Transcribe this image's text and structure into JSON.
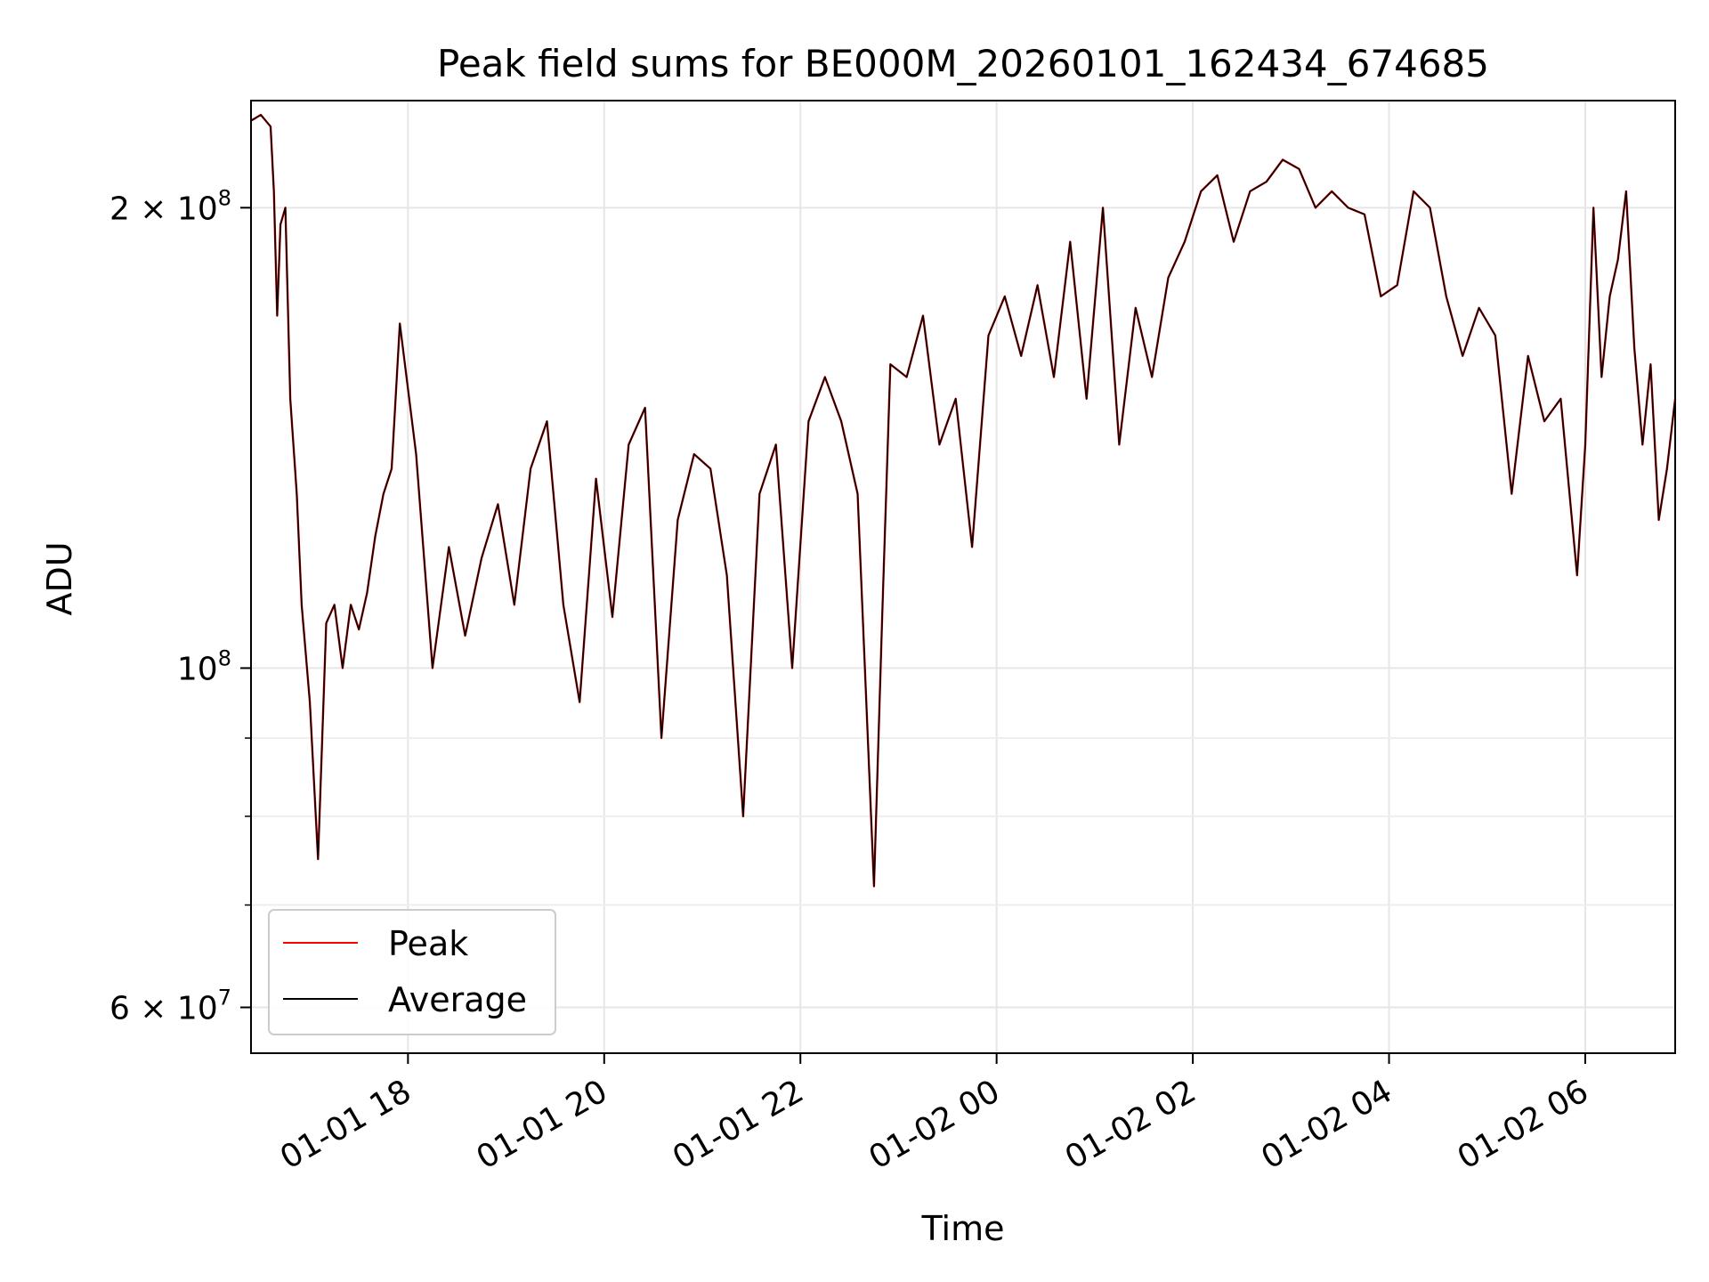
{
  "chart_data": {
    "type": "line",
    "title": "Peak field sums for BE000M_20260101_162434_674685",
    "xlabel": "Time",
    "ylabel": "ADU",
    "y_scale": "log",
    "ylim": [
      56000000,
      235000000
    ],
    "xlim": [
      "2026-01-01 16:24",
      "2026-01-02 06:55"
    ],
    "grid": true,
    "legend_position": "lower-left",
    "x_ticks": [
      {
        "at": "2026-01-01 18:00",
        "label": "01-01 18"
      },
      {
        "at": "2026-01-01 20:00",
        "label": "01-01 20"
      },
      {
        "at": "2026-01-01 22:00",
        "label": "01-01 22"
      },
      {
        "at": "2026-01-02 00:00",
        "label": "01-02 00"
      },
      {
        "at": "2026-01-02 02:00",
        "label": "01-02 02"
      },
      {
        "at": "2026-01-02 04:00",
        "label": "01-02 04"
      },
      {
        "at": "2026-01-02 06:00",
        "label": "01-02 06"
      }
    ],
    "y_ticks": [
      {
        "value": 200000000,
        "label_base": "2 × 10",
        "label_exp": "8"
      },
      {
        "value": 100000000,
        "label_base": "10",
        "label_exp": "8"
      },
      {
        "value": 60000000,
        "label_base": "6 × 10",
        "label_exp": "7"
      }
    ],
    "y_minor_ticks": [
      70000000,
      80000000,
      90000000
    ],
    "series": [
      {
        "name": "Peak",
        "color": "#ff0000",
        "x": [
          "2026-01-01 16:24",
          "2026-01-01 16:30",
          "2026-01-01 16:36",
          "2026-01-01 16:38",
          "2026-01-01 16:40",
          "2026-01-01 16:42",
          "2026-01-01 16:45",
          "2026-01-01 16:48",
          "2026-01-01 16:52",
          "2026-01-01 16:55",
          "2026-01-01 17:00",
          "2026-01-01 17:05",
          "2026-01-01 17:10",
          "2026-01-01 17:15",
          "2026-01-01 17:20",
          "2026-01-01 17:25",
          "2026-01-01 17:30",
          "2026-01-01 17:35",
          "2026-01-01 17:40",
          "2026-01-01 17:45",
          "2026-01-01 17:50",
          "2026-01-01 17:55",
          "2026-01-01 18:05",
          "2026-01-01 18:15",
          "2026-01-01 18:25",
          "2026-01-01 18:35",
          "2026-01-01 18:45",
          "2026-01-01 18:55",
          "2026-01-01 19:05",
          "2026-01-01 19:15",
          "2026-01-01 19:25",
          "2026-01-01 19:35",
          "2026-01-01 19:45",
          "2026-01-01 19:55",
          "2026-01-01 20:05",
          "2026-01-01 20:15",
          "2026-01-01 20:25",
          "2026-01-01 20:35",
          "2026-01-01 20:45",
          "2026-01-01 20:55",
          "2026-01-01 21:05",
          "2026-01-01 21:15",
          "2026-01-01 21:25",
          "2026-01-01 21:35",
          "2026-01-01 21:45",
          "2026-01-01 21:55",
          "2026-01-01 22:05",
          "2026-01-01 22:15",
          "2026-01-01 22:25",
          "2026-01-01 22:35",
          "2026-01-01 22:45",
          "2026-01-01 22:50",
          "2026-01-01 22:55",
          "2026-01-01 23:05",
          "2026-01-01 23:15",
          "2026-01-01 23:25",
          "2026-01-01 23:35",
          "2026-01-01 23:45",
          "2026-01-01 23:55",
          "2026-01-02 00:05",
          "2026-01-02 00:15",
          "2026-01-02 00:25",
          "2026-01-02 00:35",
          "2026-01-02 00:45",
          "2026-01-02 00:55",
          "2026-01-02 01:05",
          "2026-01-02 01:15",
          "2026-01-02 01:25",
          "2026-01-02 01:35",
          "2026-01-02 01:45",
          "2026-01-02 01:55",
          "2026-01-02 02:05",
          "2026-01-02 02:15",
          "2026-01-02 02:25",
          "2026-01-02 02:35",
          "2026-01-02 02:45",
          "2026-01-02 02:55",
          "2026-01-02 03:05",
          "2026-01-02 03:15",
          "2026-01-02 03:25",
          "2026-01-02 03:35",
          "2026-01-02 03:45",
          "2026-01-02 03:55",
          "2026-01-02 04:05",
          "2026-01-02 04:15",
          "2026-01-02 04:25",
          "2026-01-02 04:35",
          "2026-01-02 04:45",
          "2026-01-02 04:55",
          "2026-01-02 05:05",
          "2026-01-02 05:15",
          "2026-01-02 05:25",
          "2026-01-02 05:35",
          "2026-01-02 05:45",
          "2026-01-02 05:55",
          "2026-01-02 06:00",
          "2026-01-02 06:05",
          "2026-01-02 06:10",
          "2026-01-02 06:15",
          "2026-01-02 06:20",
          "2026-01-02 06:25",
          "2026-01-02 06:30",
          "2026-01-02 06:35",
          "2026-01-02 06:40",
          "2026-01-02 06:45",
          "2026-01-02 06:50",
          "2026-01-02 06:55"
        ],
        "values": [
          228000000,
          230000000,
          226000000,
          205000000,
          170000000,
          195000000,
          200000000,
          150000000,
          130000000,
          110000000,
          95000000,
          75000000,
          107000000,
          110000000,
          100000000,
          110000000,
          106000000,
          112000000,
          122000000,
          130000000,
          135000000,
          168000000,
          138000000,
          100000000,
          120000000,
          105000000,
          118000000,
          128000000,
          110000000,
          135000000,
          145000000,
          110000000,
          95000000,
          133000000,
          108000000,
          140000000,
          148000000,
          90000000,
          125000000,
          138000000,
          135000000,
          115000000,
          80000000,
          130000000,
          140000000,
          100000000,
          145000000,
          155000000,
          145000000,
          130000000,
          72000000,
          108000000,
          158000000,
          155000000,
          170000000,
          140000000,
          150000000,
          120000000,
          165000000,
          175000000,
          160000000,
          178000000,
          155000000,
          190000000,
          150000000,
          200000000,
          140000000,
          172000000,
          155000000,
          180000000,
          190000000,
          205000000,
          210000000,
          190000000,
          205000000,
          208000000,
          215000000,
          212000000,
          200000000,
          205000000,
          200000000,
          198000000,
          175000000,
          178000000,
          205000000,
          200000000,
          175000000,
          160000000,
          172000000,
          165000000,
          130000000,
          160000000,
          145000000,
          150000000,
          115000000,
          140000000,
          200000000,
          155000000,
          175000000,
          185000000,
          205000000,
          162000000,
          140000000,
          158000000,
          125000000,
          135000000,
          150000000
        ],
        "values_note_ignore": null
      },
      {
        "name": "Average",
        "color": "#000000",
        "same_as": "Peak"
      }
    ]
  }
}
